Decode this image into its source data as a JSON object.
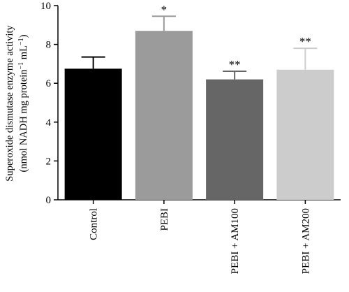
{
  "chart_data": {
    "type": "bar",
    "categories": [
      "Control",
      "PEBI",
      "PEBI + AM100",
      "PEBI + AM200"
    ],
    "values": [
      6.75,
      8.7,
      6.2,
      6.7
    ],
    "errors": [
      0.6,
      0.75,
      0.42,
      1.1
    ],
    "significance": [
      "",
      "*",
      "**",
      "**"
    ],
    "colors": [
      "#000000",
      "#9b9b9b",
      "#666666",
      "#cccccc"
    ],
    "ylabel_line1": "Superoxide dismutase enzyme activity",
    "ylabel_line2_main": "(nmol NADH mg protein",
    "ylabel_line2_sup1": "−1",
    "ylabel_line2_mid": " mL",
    "ylabel_line2_sup2": "−1",
    "ylabel_line2_end": ")",
    "ylim": [
      0,
      10
    ],
    "yticks": [
      0,
      2,
      4,
      6,
      8,
      10
    ],
    "grid": false
  }
}
